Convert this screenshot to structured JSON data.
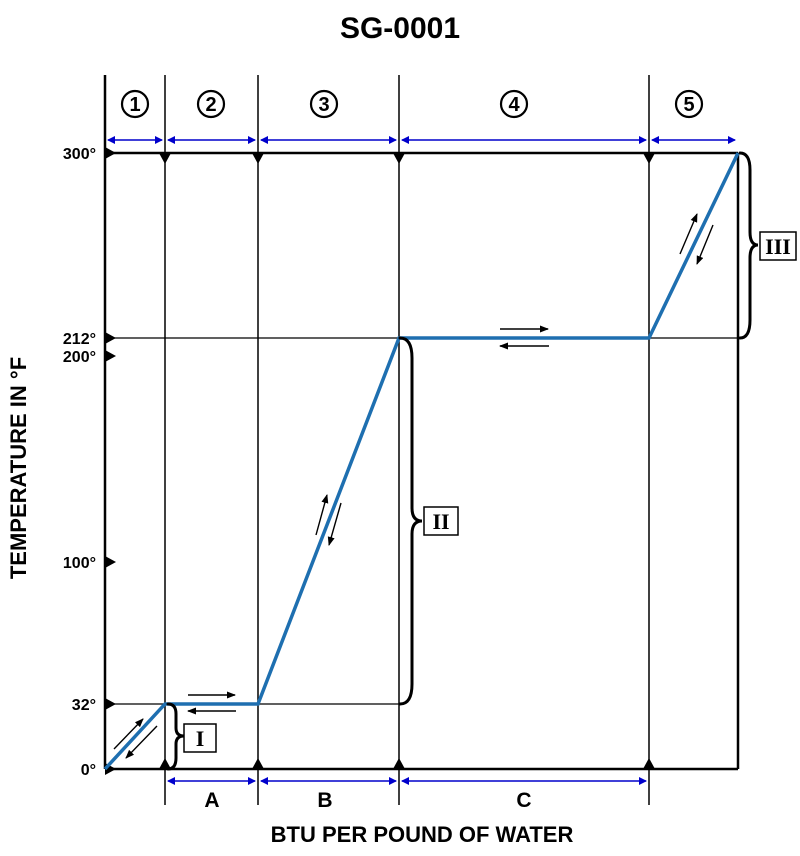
{
  "title": "SG-0001",
  "x_axis_label": "BTU PER POUND OF WATER",
  "y_axis_label": "TEMPERATURE IN °F",
  "temperature_ticks": [
    "0°",
    "32°",
    "100°",
    "200°",
    "212°",
    "300°"
  ],
  "zones": [
    "1",
    "2",
    "3",
    "4",
    "5"
  ],
  "segments": [
    "A",
    "B",
    "C"
  ],
  "ranges": [
    "I",
    "II",
    "III"
  ],
  "colors": {
    "curve": "#1e6fb0",
    "dimension_arrows": "#0000cc",
    "lines": "#000000"
  },
  "chart_data": {
    "type": "line",
    "xlabel": "BTU PER POUND OF WATER",
    "ylabel": "TEMPERATURE IN °F",
    "ylim": [
      0,
      300
    ],
    "y_ticks": [
      0,
      32,
      100,
      200,
      212,
      300
    ],
    "series": [
      {
        "points": [
          {
            "zone": "1",
            "from_temp": 0,
            "to_temp": 32
          },
          {
            "zone": "2",
            "from_temp": 32,
            "to_temp": 32
          },
          {
            "zone": "3",
            "from_temp": 32,
            "to_temp": 212
          },
          {
            "zone": "4",
            "from_temp": 212,
            "to_temp": 212
          },
          {
            "zone": "5",
            "from_temp": 212,
            "to_temp": 300
          }
        ]
      }
    ]
  }
}
